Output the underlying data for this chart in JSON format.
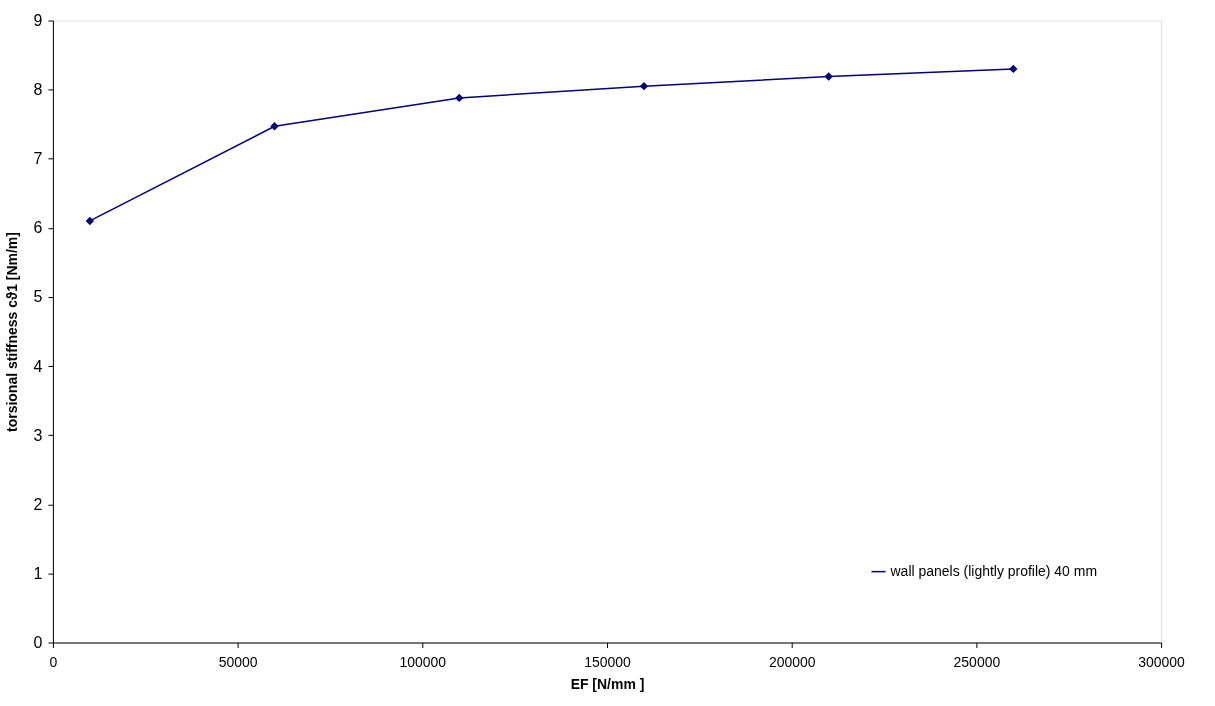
{
  "chart_data": {
    "type": "line",
    "xlabel": "EF [N/mm ]",
    "ylabel": "torsional stiffness cϑ1 [Nm/m]",
    "x": [
      10000,
      60000,
      110000,
      160000,
      210000,
      260000
    ],
    "series": [
      {
        "name": "wall panels (lightly profile) 40 mm",
        "color": "#000080",
        "values": [
          6.1,
          7.47,
          7.88,
          8.05,
          8.19,
          8.3
        ]
      }
    ],
    "xlim": [
      0,
      300000
    ],
    "xticks": [
      0,
      50000,
      100000,
      150000,
      200000,
      250000,
      300000
    ],
    "ylim": [
      0,
      9
    ],
    "yticks": [
      0,
      1,
      2,
      3,
      4,
      5,
      6,
      7,
      8,
      9
    ],
    "grid": false,
    "legend": "bottom right",
    "marker": "diamond",
    "line_style": "solid"
  }
}
